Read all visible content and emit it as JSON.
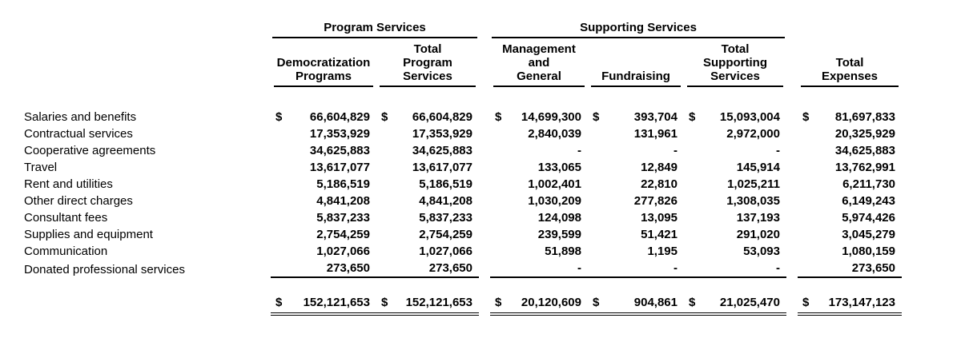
{
  "table": {
    "groups": [
      "Program Services",
      "Supporting Services"
    ],
    "columns": [
      "Democratization\nPrograms",
      "Total\nProgram\nServices",
      "Management\nand\nGeneral",
      "Fundraising",
      "Total\nSupporting\nServices",
      "Total\nExpenses"
    ],
    "rows": [
      {
        "label": "Salaries and benefits",
        "dollar": true,
        "values": [
          "66,604,829",
          "66,604,829",
          "14,699,300",
          "393,704",
          "15,093,004",
          "81,697,833"
        ]
      },
      {
        "label": "Contractual services",
        "dollar": false,
        "values": [
          "17,353,929",
          "17,353,929",
          "2,840,039",
          "131,961",
          "2,972,000",
          "20,325,929"
        ]
      },
      {
        "label": "Cooperative agreements",
        "dollar": false,
        "values": [
          "34,625,883",
          "34,625,883",
          "-",
          "-",
          "-",
          "34,625,883"
        ]
      },
      {
        "label": "Travel",
        "dollar": false,
        "values": [
          "13,617,077",
          "13,617,077",
          "133,065",
          "12,849",
          "145,914",
          "13,762,991"
        ]
      },
      {
        "label": "Rent and utilities",
        "dollar": false,
        "values": [
          "5,186,519",
          "5,186,519",
          "1,002,401",
          "22,810",
          "1,025,211",
          "6,211,730"
        ]
      },
      {
        "label": "Other direct charges",
        "dollar": false,
        "values": [
          "4,841,208",
          "4,841,208",
          "1,030,209",
          "277,826",
          "1,308,035",
          "6,149,243"
        ]
      },
      {
        "label": "Consultant fees",
        "dollar": false,
        "values": [
          "5,837,233",
          "5,837,233",
          "124,098",
          "13,095",
          "137,193",
          "5,974,426"
        ]
      },
      {
        "label": "Supplies and equipment",
        "dollar": false,
        "values": [
          "2,754,259",
          "2,754,259",
          "239,599",
          "51,421",
          "291,020",
          "3,045,279"
        ]
      },
      {
        "label": "Communication",
        "dollar": false,
        "values": [
          "1,027,066",
          "1,027,066",
          "51,898",
          "1,195",
          "53,093",
          "1,080,159"
        ]
      },
      {
        "label": "Donated professional services",
        "dollar": false,
        "underline": true,
        "values": [
          "273,650",
          "273,650",
          "-",
          "-",
          "-",
          "273,650"
        ]
      }
    ],
    "totals": {
      "label": "",
      "dollar": true,
      "values": [
        "152,121,653",
        "152,121,653",
        "20,120,609",
        "904,861",
        "21,025,470",
        "173,147,123"
      ]
    }
  }
}
